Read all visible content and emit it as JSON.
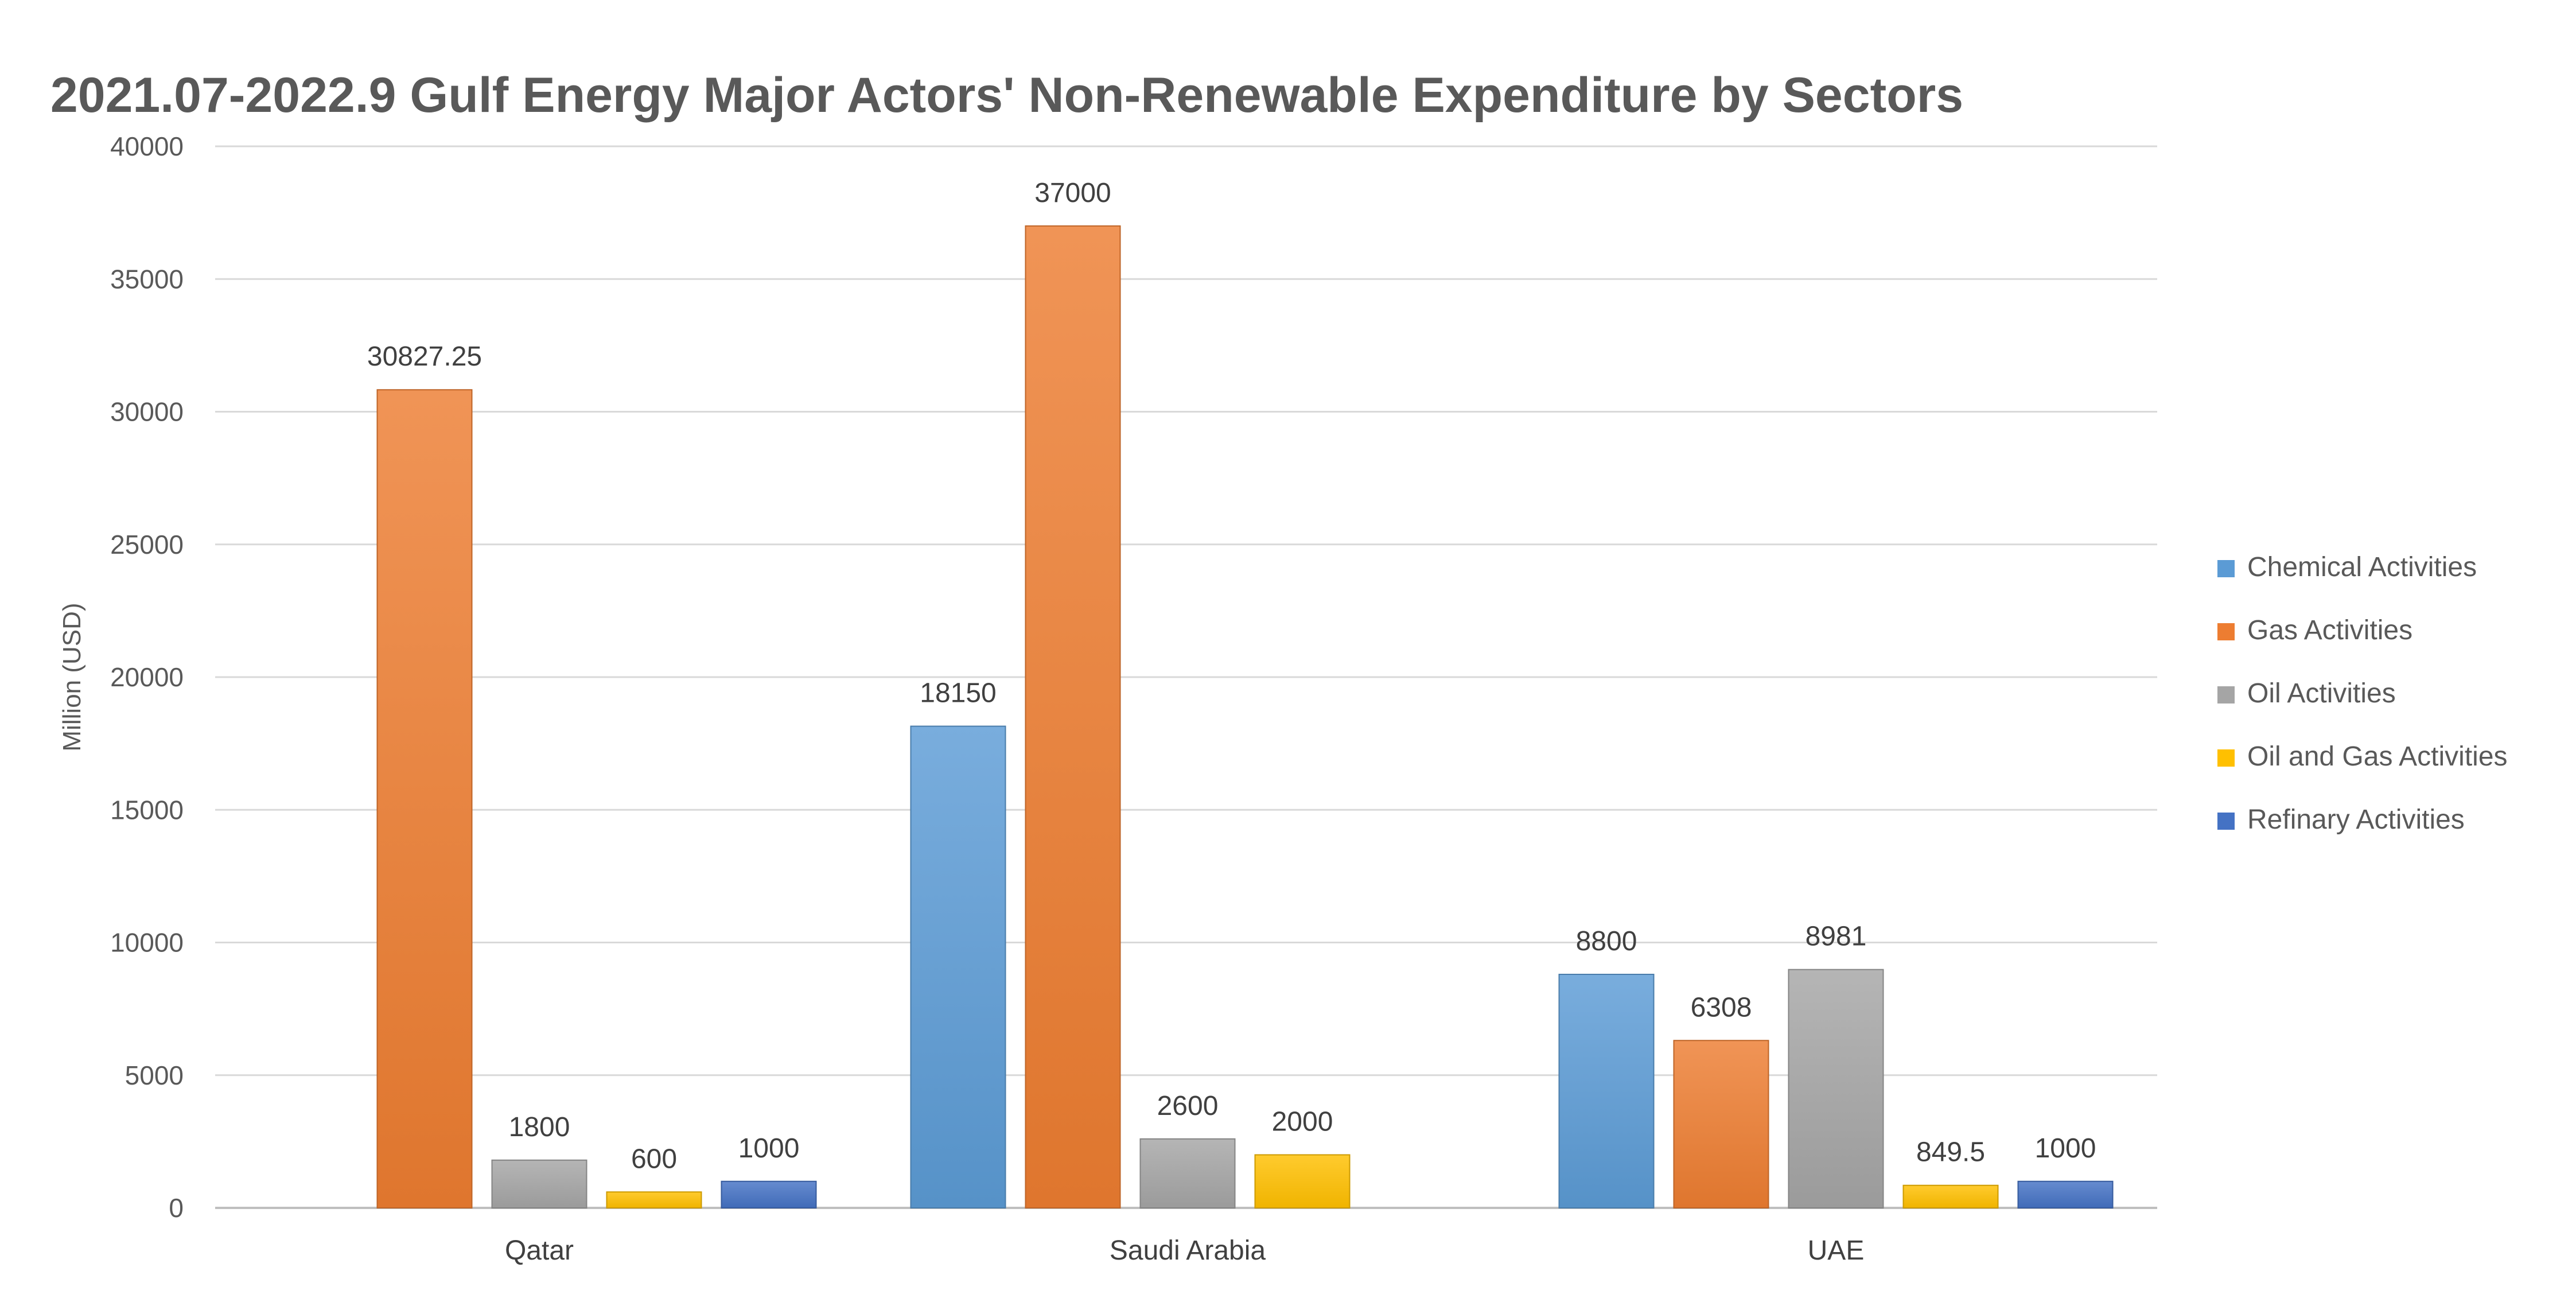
{
  "chart_data": {
    "type": "bar",
    "title": "2021.07-2022.9 Gulf Energy Major Actors' Non-Renewable Expenditure by Sectors",
    "xlabel": "",
    "ylabel": "Million (USD)",
    "ylim": [
      0,
      40000
    ],
    "yticks": [
      0,
      5000,
      10000,
      15000,
      20000,
      25000,
      30000,
      35000,
      40000
    ],
    "grid": true,
    "legend_position": "right",
    "categories": [
      "Qatar",
      "Saudi Arabia",
      "UAE"
    ],
    "series": [
      {
        "name": "Chemical Activities",
        "color": "#5B9BD5",
        "values": [
          null,
          18150,
          8800
        ],
        "labels": [
          "",
          "18150",
          "8800"
        ]
      },
      {
        "name": "Gas Activities",
        "color": "#ED7D31",
        "values": [
          30827.25,
          37000,
          6308
        ],
        "labels": [
          "30827.25",
          "37000",
          "6308"
        ]
      },
      {
        "name": "Oil Activities",
        "color": "#A5A5A5",
        "values": [
          1800,
          2600,
          8981
        ],
        "labels": [
          "1800",
          "2600",
          "8981"
        ]
      },
      {
        "name": "Oil and Gas Activities",
        "color": "#FFC000",
        "values": [
          600,
          2000,
          849.5
        ],
        "labels": [
          "600",
          "2000",
          "849.5"
        ]
      },
      {
        "name": "Refinary Activities",
        "color": "#4472C4",
        "values": [
          1000,
          null,
          1000
        ],
        "labels": [
          "1000",
          "",
          "1000"
        ]
      }
    ]
  }
}
